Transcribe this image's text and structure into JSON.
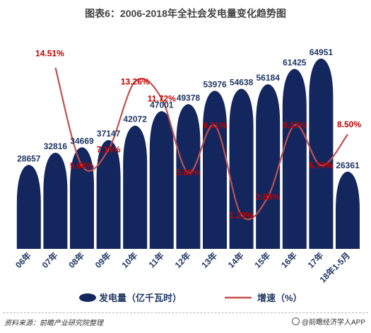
{
  "chart_data": {
    "type": "bar",
    "title": "图表6：2006-2018年全社会发电量变化趋势图",
    "categories": [
      "06年",
      "07年",
      "08年",
      "09年",
      "10年",
      "11年",
      "12年",
      "13年",
      "14年",
      "15年",
      "16年",
      "17年",
      "18年1-5月"
    ],
    "series": [
      {
        "name": "发电量（亿千瓦时）",
        "type": "bar",
        "values": [
          28657,
          32816,
          34669,
          37147,
          42072,
          47001,
          49378,
          53976,
          54638,
          56184,
          61425,
          64951,
          26361
        ],
        "labels": [
          "28657",
          "32816",
          "34669",
          "37147",
          "42072",
          "47001",
          "49378",
          "53976",
          "54638",
          "56184",
          "61425",
          "64951",
          "26361"
        ]
      },
      {
        "name": "增速（%）",
        "type": "line",
        "values": [
          null,
          14.51,
          5.68,
          7.15,
          13.26,
          11.72,
          5.06,
          9.31,
          1.23,
          2.88,
          9.33,
          5.7,
          8.5
        ],
        "labels": [
          "",
          "14.51%",
          "5.68%",
          "7.15%",
          "13.26%",
          "11.72%",
          "5.06%",
          "9.31%",
          "1.23%",
          "2.88%",
          "9.33%",
          "5.70%",
          "8.50%"
        ]
      }
    ],
    "legend": {
      "position": "bottom"
    },
    "bar_color": "#13275e",
    "line_color": "#c0504d",
    "label_color_bar": "#1f3864",
    "label_color_line": "#c00000",
    "grid": false
  },
  "footer": {
    "source": "资料来源：前瞻产业研究院整理",
    "brand": "@前瞻经济学人APP"
  }
}
